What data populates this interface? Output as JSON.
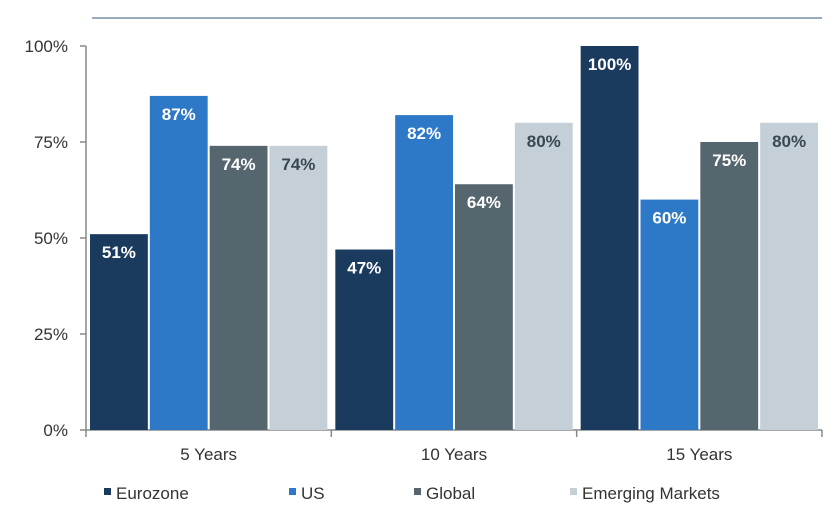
{
  "chart_data": {
    "type": "bar",
    "categories": [
      "5 Years",
      "10 Years",
      "15 Years"
    ],
    "series": [
      {
        "name": "Eurozone",
        "values": [
          51,
          47,
          100
        ],
        "color": "#1a3a5e"
      },
      {
        "name": "US",
        "values": [
          87,
          82,
          60
        ],
        "color": "#2e78c8"
      },
      {
        "name": "Global",
        "values": [
          74,
          64,
          75
        ],
        "color": "#56666f"
      },
      {
        "name": "Emerging Markets",
        "values": [
          74,
          80,
          80
        ],
        "color": "#c4cfd8"
      }
    ],
    "ylim": [
      0,
      100
    ],
    "yticks": [
      {
        "value": 0,
        "label": "0%"
      },
      {
        "value": 25,
        "label": "25%"
      },
      {
        "value": 50,
        "label": "50%"
      },
      {
        "value": 75,
        "label": "75%"
      },
      {
        "value": 100,
        "label": "100%"
      }
    ],
    "data_label_suffix": "%",
    "grid": false,
    "legend_position": "bottom",
    "title": "",
    "xlabel": "",
    "ylabel": ""
  }
}
